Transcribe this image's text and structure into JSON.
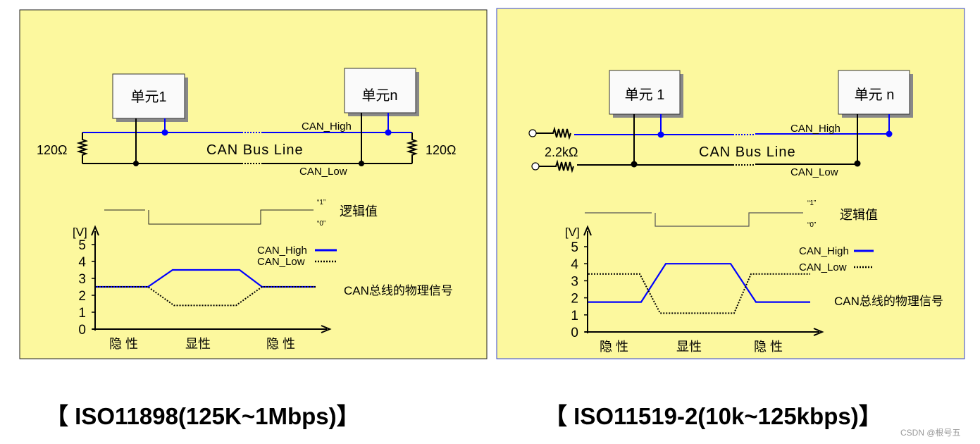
{
  "colors": {
    "panel_bg": "#fcf89e",
    "can_high": "#0000ff",
    "can_low": "#000000",
    "panel2_border": "#3344cc"
  },
  "panels": [
    {
      "unit1": "单元1",
      "unitn": "单元n",
      "bus_label": "CAN Bus Line",
      "high_label": "CAN_High",
      "low_label": "CAN_Low",
      "resistor_left": "120Ω",
      "resistor_right": "120Ω",
      "logic_1": "“1”",
      "logic_0": "“0”",
      "logic_label": "逻辑值",
      "signal_label": "CAN总线的物理信号",
      "caption": "【 ISO11898(125K~1Mbps)】"
    },
    {
      "unit1": "单元 1",
      "unitn": "单元  n",
      "bus_label": "CAN Bus Line",
      "high_label": "CAN_High",
      "low_label": "CAN_Low",
      "resistor": "2.2kΩ",
      "logic_1": "“1”",
      "logic_0": "“0”",
      "logic_label": "逻辑值",
      "signal_label": "CAN总线的物理信号",
      "caption": "【 ISO11519-2(10k~125kbps)】"
    }
  ],
  "chart_data": [
    {
      "type": "line",
      "ylabel": "[V]",
      "ylim": [
        0,
        5
      ],
      "yticks": [
        "0",
        "1",
        "2",
        "3",
        "4",
        "5"
      ],
      "categories": [
        "隐 性",
        "显性",
        "隐 性"
      ],
      "series": [
        {
          "name": "CAN_High",
          "style": "solid",
          "recessive": 2.5,
          "dominant": 3.5
        },
        {
          "name": "CAN_Low",
          "style": "dotted",
          "recessive": 2.5,
          "dominant": 1.4
        }
      ]
    },
    {
      "type": "line",
      "ylabel": "[V]",
      "ylim": [
        0,
        5
      ],
      "yticks": [
        "0",
        "1",
        "2",
        "3",
        "4",
        "5"
      ],
      "categories": [
        "隐 性",
        "显性",
        "隐 性"
      ],
      "series": [
        {
          "name": "CAN_High",
          "style": "solid",
          "recessive": 1.75,
          "dominant": 4.0
        },
        {
          "name": "CAN_Low",
          "style": "dotted",
          "recessive": 3.4,
          "dominant": 1.1
        }
      ]
    }
  ],
  "watermark": "CSDN @根号五"
}
